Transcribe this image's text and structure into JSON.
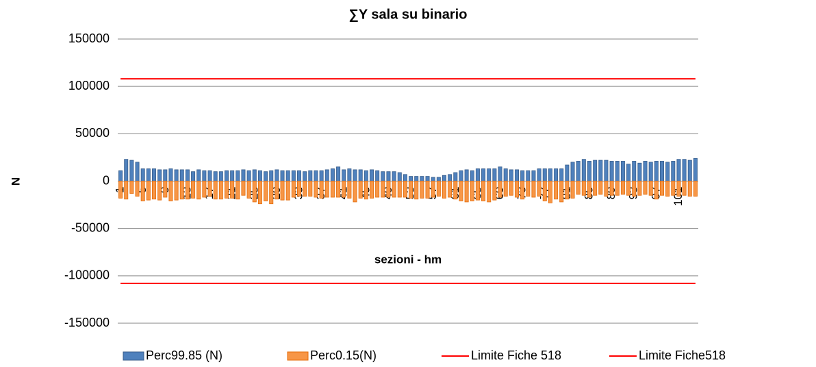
{
  "chart_data": {
    "type": "bar",
    "title": "∑Y sala su binario",
    "y_label": "N",
    "x_label": "sezioni - hm",
    "categories": [
      "1",
      null,
      null,
      null,
      "5",
      null,
      null,
      null,
      "9",
      null,
      null,
      null,
      "13",
      null,
      null,
      null,
      "17",
      null,
      null,
      null,
      "21",
      null,
      null,
      null,
      "25",
      null,
      null,
      null,
      "29",
      null,
      null,
      null,
      "33",
      null,
      null,
      null,
      "37",
      null,
      null,
      null,
      "41",
      null,
      null,
      null,
      "45",
      null,
      null,
      null,
      "49",
      null,
      null,
      null,
      "53",
      null,
      null,
      null,
      "57",
      null,
      null,
      null,
      "61",
      null,
      null,
      null,
      "65",
      null,
      null,
      null,
      "69",
      null,
      null,
      null,
      "73",
      null,
      null,
      null,
      "77",
      null,
      null,
      null,
      "81",
      null,
      null,
      null,
      "85",
      null,
      null,
      null,
      "89",
      null,
      null,
      null,
      "93",
      null,
      null,
      null,
      "97",
      null,
      null,
      null,
      "101",
      null,
      null,
      null
    ],
    "series": [
      {
        "name": "Perc99.85 (N)",
        "type": "bar",
        "color": "#4f81bd",
        "values": [
          11000,
          23000,
          22000,
          20000,
          13000,
          13000,
          13000,
          12000,
          12000,
          13000,
          12000,
          12000,
          12000,
          10000,
          12000,
          11000,
          11000,
          10000,
          10000,
          11000,
          11000,
          11000,
          12000,
          11000,
          12000,
          11000,
          10000,
          11000,
          12000,
          11000,
          11000,
          11000,
          11000,
          10000,
          11000,
          11000,
          11000,
          12000,
          13000,
          15000,
          12000,
          13000,
          12000,
          12000,
          11000,
          12000,
          11000,
          10000,
          10000,
          10000,
          9000,
          7000,
          5000,
          5000,
          5000,
          5000,
          4000,
          4000,
          6000,
          7000,
          9000,
          11000,
          12000,
          11000,
          13000,
          13000,
          13000,
          13000,
          15000,
          13000,
          12000,
          12000,
          11000,
          11000,
          11000,
          13000,
          13000,
          13000,
          13000,
          13000,
          17000,
          20000,
          21000,
          23000,
          21000,
          22000,
          22000,
          22000,
          21000,
          21000,
          21000,
          18000,
          21000,
          19000,
          21000,
          20000,
          21000,
          21000,
          20000,
          21000,
          23000,
          23000,
          22000,
          24000
        ]
      },
      {
        "name": "Perc0.15(N)",
        "type": "bar",
        "color": "#f79646",
        "values": [
          -18000,
          -19000,
          -13000,
          -16000,
          -21000,
          -20000,
          -19000,
          -20000,
          -17000,
          -21000,
          -20000,
          -19000,
          -19000,
          -18000,
          -19000,
          -17000,
          -16000,
          -19000,
          -19000,
          -18000,
          -18000,
          -19000,
          -15000,
          -18000,
          -22000,
          -24000,
          -21000,
          -24000,
          -19000,
          -20000,
          -20000,
          -17000,
          -16000,
          -16000,
          -16000,
          -17000,
          -18000,
          -17000,
          -17000,
          -17000,
          -17000,
          -18000,
          -22000,
          -18000,
          -19000,
          -18000,
          -17000,
          -17000,
          -17000,
          -17000,
          -17000,
          -17000,
          -18000,
          -19000,
          -18000,
          -18000,
          -17000,
          -16000,
          -18000,
          -17000,
          -19000,
          -21000,
          -22000,
          -21000,
          -20000,
          -21000,
          -22000,
          -20000,
          -17000,
          -16000,
          -15000,
          -17000,
          -19000,
          -16000,
          -17000,
          -16000,
          -21000,
          -23000,
          -19000,
          -22000,
          -19000,
          -18000,
          -14000,
          -15000,
          -17000,
          -15000,
          -14000,
          -16000,
          -15000,
          -15000,
          -14000,
          -15000,
          -16000,
          -15000,
          -14000,
          -15000,
          -19000,
          -15000,
          -16000,
          -15000,
          -16000,
          -15000,
          -16000,
          -16000
        ]
      },
      {
        "name": "Limite Fiche 518",
        "type": "line",
        "color": "#ff0000",
        "values": [
          108000,
          108000,
          108000,
          108000,
          108000,
          108000,
          108000,
          108000,
          108000,
          108000,
          108000,
          108000,
          108000,
          108000,
          108000,
          108000,
          108000,
          108000,
          108000,
          108000,
          108000,
          108000,
          108000,
          108000,
          108000,
          108000,
          108000,
          108000,
          108000,
          108000,
          108000,
          108000,
          108000,
          108000,
          108000,
          108000,
          108000,
          108000,
          108000,
          108000,
          108000,
          108000,
          108000,
          108000,
          108000,
          108000,
          108000,
          108000,
          108000,
          108000,
          108000,
          108000,
          108000,
          108000,
          108000,
          108000,
          108000,
          108000,
          108000,
          108000,
          108000,
          108000,
          108000,
          108000,
          108000,
          108000,
          108000,
          108000,
          108000,
          108000,
          108000,
          108000,
          108000,
          108000,
          108000,
          108000,
          108000,
          108000,
          108000,
          108000,
          108000,
          108000,
          108000,
          108000,
          108000,
          108000,
          108000,
          108000,
          108000,
          108000,
          108000,
          108000,
          108000,
          108000,
          108000,
          108000,
          108000,
          108000,
          108000,
          108000,
          108000,
          108000,
          108000,
          108000
        ]
      },
      {
        "name": "Limite Fiche518",
        "type": "line",
        "color": "#ff0000",
        "values": [
          -108000,
          -108000,
          -108000,
          -108000,
          -108000,
          -108000,
          -108000,
          -108000,
          -108000,
          -108000,
          -108000,
          -108000,
          -108000,
          -108000,
          -108000,
          -108000,
          -108000,
          -108000,
          -108000,
          -108000,
          -108000,
          -108000,
          -108000,
          -108000,
          -108000,
          -108000,
          -108000,
          -108000,
          -108000,
          -108000,
          -108000,
          -108000,
          -108000,
          -108000,
          -108000,
          -108000,
          -108000,
          -108000,
          -108000,
          -108000,
          -108000,
          -108000,
          -108000,
          -108000,
          -108000,
          -108000,
          -108000,
          -108000,
          -108000,
          -108000,
          -108000,
          -108000,
          -108000,
          -108000,
          -108000,
          -108000,
          -108000,
          -108000,
          -108000,
          -108000,
          -108000,
          -108000,
          -108000,
          -108000,
          -108000,
          -108000,
          -108000,
          -108000,
          -108000,
          -108000,
          -108000,
          -108000,
          -108000,
          -108000,
          -108000,
          -108000,
          -108000,
          -108000,
          -108000,
          -108000,
          -108000,
          -108000,
          -108000,
          -108000,
          -108000,
          -108000,
          -108000,
          -108000,
          -108000,
          -108000,
          -108000,
          -108000,
          -108000,
          -108000,
          -108000,
          -108000,
          -108000,
          -108000,
          -108000,
          -108000,
          -108000,
          -108000,
          -108000,
          -108000
        ]
      }
    ],
    "ylim": [
      -150000,
      150000
    ],
    "yticks": [
      -150000,
      -100000,
      -50000,
      0,
      50000,
      100000,
      150000
    ],
    "grid": true,
    "legend": "bottom"
  }
}
